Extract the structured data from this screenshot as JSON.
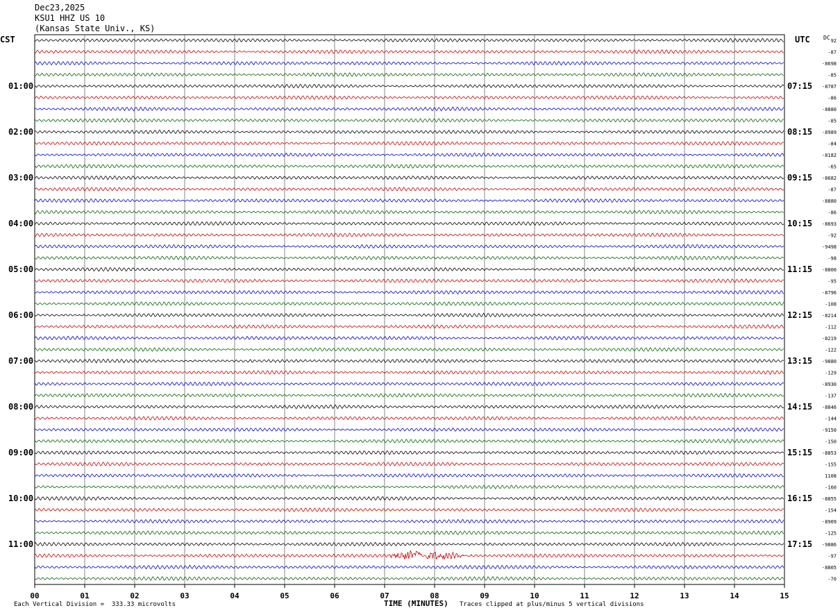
{
  "header": {
    "date": "Dec23,2025",
    "station": "KSU1 HHZ US 10",
    "location": "(Kansas State Univ., KS)"
  },
  "left_tz": "CST",
  "right_tz": "UTC",
  "dc_label": "DC",
  "footer": {
    "scale": "Each Vertical Division =  333.33 microvolts",
    "xlabel": "TIME (MINUTES)",
    "clip": "Traces clipped at plus/minus 5 vertical divisions"
  },
  "chart_data": {
    "type": "line",
    "title": "KSU1 HHZ US 10",
    "xlabel": "TIME (MINUTES)",
    "x_ticks": [
      "00",
      "01",
      "02",
      "03",
      "04",
      "05",
      "06",
      "07",
      "08",
      "09",
      "10",
      "11",
      "12",
      "13",
      "14",
      "15"
    ],
    "xlim": [
      0,
      15
    ],
    "traces_per_hour": 4,
    "trace_colors": [
      "#000000",
      "#cc0000",
      "#0000cc",
      "#006600"
    ],
    "left_hour_labels": [
      "01:00",
      "02:00",
      "03:00",
      "04:00",
      "05:00",
      "06:00",
      "07:00",
      "08:00",
      "09:00",
      "10:00",
      "11:00"
    ],
    "right_hour_labels": [
      "07:15",
      "08:15",
      "09:15",
      "10:15",
      "11:15",
      "12:15",
      "13:15",
      "14:15",
      "15:15",
      "16:15",
      "17:15"
    ],
    "dc_offsets": [
      "92",
      "-87",
      "-8698",
      "-85",
      "-8787",
      "-86",
      "-8880",
      "-85",
      "-8989",
      "-84",
      "-8182",
      "-65",
      "-8682",
      "-87",
      "-8880",
      "-86",
      "-8693",
      "-92",
      "-9498",
      "-98",
      "-8800",
      "-95",
      "-8796",
      "-108",
      "-8214",
      "-112",
      "-8219",
      "-122",
      "-9880",
      "-129",
      "-8930",
      "-137",
      "-8846",
      "-144",
      "-9150",
      "-150",
      "-8853",
      "-155",
      "1108",
      "-160",
      "-8855",
      "-154",
      "-8909",
      "-125",
      "-9886",
      "-97",
      "-8805",
      "-70"
    ],
    "events": [
      {
        "trace": 45,
        "start_min": 7.0,
        "end_min": 9.2,
        "note": "large amplitude arrival"
      }
    ]
  }
}
